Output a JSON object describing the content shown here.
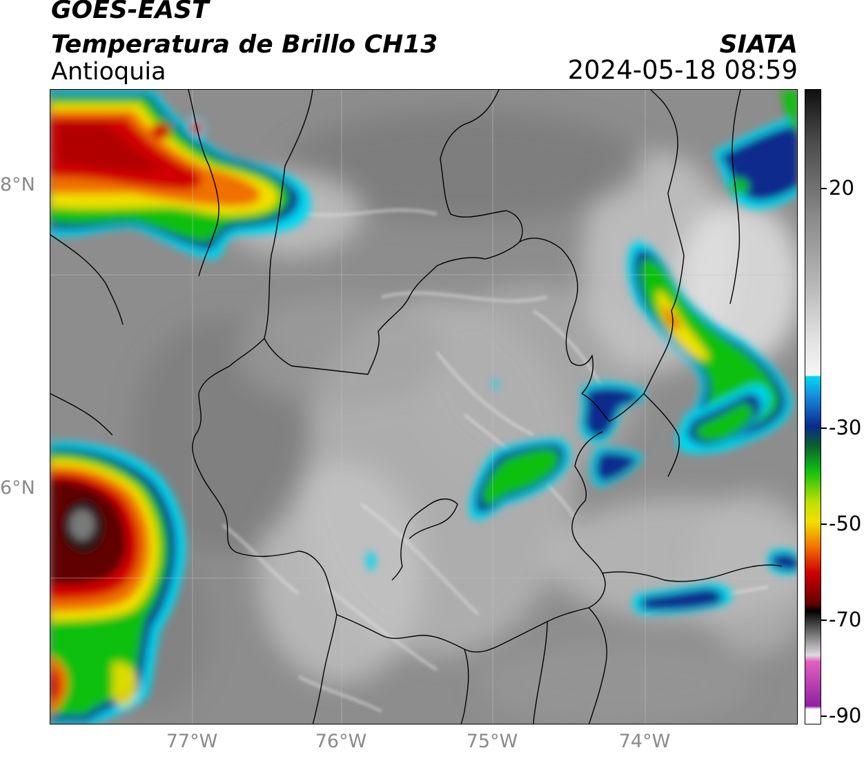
{
  "header": {
    "satellite": "GOES-EAST",
    "product": "Temperatura de Brillo CH13",
    "region": "Antioquia",
    "agency": "SIATA",
    "timestamp": "2024-05-18 08:59"
  },
  "map": {
    "lat_labels": [
      "8°N",
      "6°N"
    ],
    "lon_labels": [
      "77°W",
      "76°W",
      "75°W",
      "74°W"
    ]
  },
  "colorbar": {
    "labels": [
      "20",
      "-30",
      "-50",
      "-70",
      "-90"
    ],
    "colors": {
      "warm_dark": "#4a4a4a",
      "warm_light": "#f4f4f4",
      "cyan": "#00d8f0",
      "blue": "#0a2a8c",
      "green": "#10c010",
      "yellow": "#f0e000",
      "orange": "#f07000",
      "red": "#d00000",
      "darkred": "#600000",
      "black": "#000000",
      "magenta": "#d030b0"
    }
  }
}
